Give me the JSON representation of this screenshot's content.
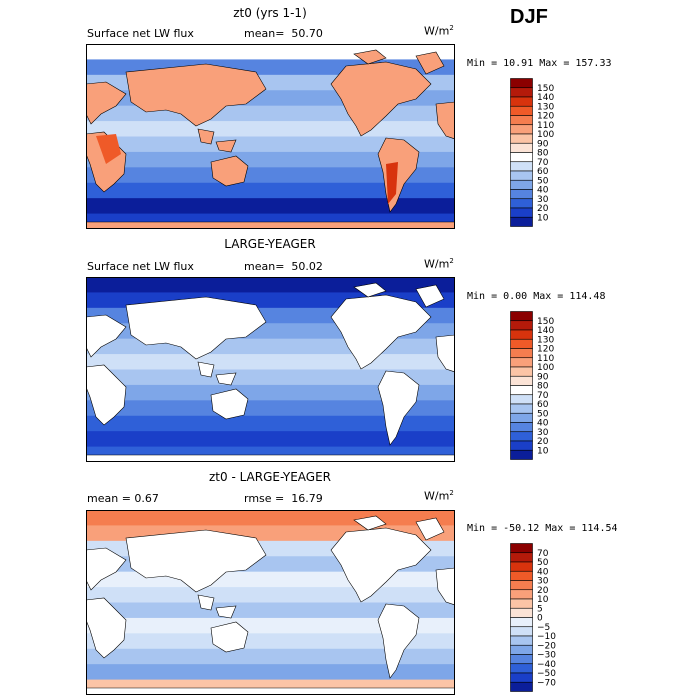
{
  "season": "DJF",
  "units": "W/m",
  "units_exp": "2",
  "panels": [
    {
      "title": "zt0 (yrs 1-1)",
      "left_label": "Surface net LW flux",
      "stat_label": "mean=",
      "stat_value": "50.70",
      "minmax": "Min =  10.91 Max = 157.33",
      "kind": "full",
      "colorbar": {
        "labels": [
          "150",
          "140",
          "130",
          "120",
          "110",
          "100",
          "90",
          "80",
          "70",
          "60",
          "50",
          "40",
          "30",
          "20",
          "10"
        ],
        "colors": [
          "#8b0000",
          "#b41a0a",
          "#d8330d",
          "#ef5a28",
          "#f57d4f",
          "#f9a07a",
          "#fbc4a6",
          "#fbe3d6",
          "#ffffff",
          "#cfe0f7",
          "#a8c5f0",
          "#7ea6e8",
          "#5684e0",
          "#2f60d8",
          "#1a3fc8",
          "#0b1e9a"
        ]
      }
    },
    {
      "title": "LARGE-YEAGER",
      "left_label": "Surface net LW flux",
      "stat_label": "mean=",
      "stat_value": "50.02",
      "minmax": "Min =   0.00 Max = 114.48",
      "kind": "ocean",
      "colorbar": {
        "labels": [
          "150",
          "140",
          "130",
          "120",
          "110",
          "100",
          "90",
          "80",
          "70",
          "60",
          "50",
          "40",
          "30",
          "20",
          "10"
        ],
        "colors": [
          "#8b0000",
          "#b41a0a",
          "#d8330d",
          "#ef5a28",
          "#f57d4f",
          "#f9a07a",
          "#fbc4a6",
          "#fbe3d6",
          "#ffffff",
          "#cfe0f7",
          "#a8c5f0",
          "#7ea6e8",
          "#5684e0",
          "#2f60d8",
          "#1a3fc8",
          "#0b1e9a"
        ]
      }
    },
    {
      "title": "zt0 - LARGE-YEAGER",
      "left_label": "mean =    0.67",
      "stat_label": "rmse =",
      "stat_value": "16.79",
      "minmax": "Min = -50.12 Max = 114.54",
      "kind": "diff",
      "colorbar": {
        "labels": [
          "70",
          "50",
          "40",
          "30",
          "20",
          "10",
          "5",
          "0",
          "−5",
          "−10",
          "−20",
          "−30",
          "−40",
          "−50",
          "−70"
        ],
        "colors": [
          "#8b0000",
          "#b41a0a",
          "#d8330d",
          "#ef5a28",
          "#f57d4f",
          "#f9a07a",
          "#fbc4a6",
          "#fbe3d6",
          "#e8f0fb",
          "#cfe0f7",
          "#a8c5f0",
          "#7ea6e8",
          "#5684e0",
          "#2f60d8",
          "#1a3fc8",
          "#0b1e9a"
        ]
      }
    }
  ]
}
